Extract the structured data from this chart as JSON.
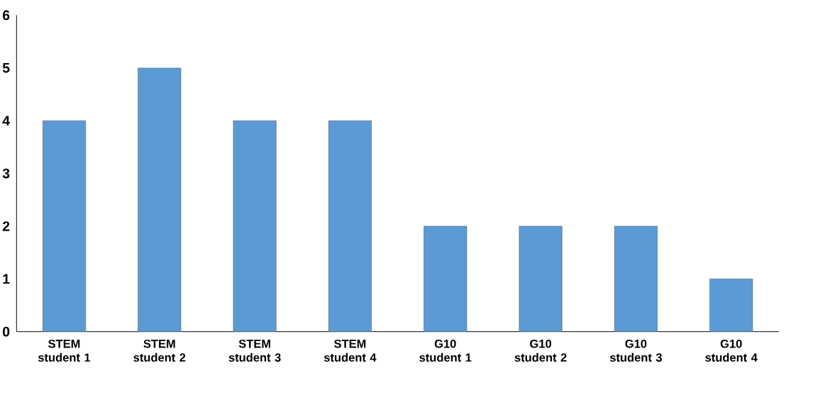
{
  "chart_data": {
    "type": "bar",
    "categories": [
      "STEM student 1",
      "STEM student 2",
      "STEM student 3",
      "STEM student 4",
      "G10 student 1",
      "G10 student 2",
      "G10 student 3",
      "G10 student 4"
    ],
    "values": [
      4,
      5,
      4,
      4,
      2,
      2,
      2,
      1
    ],
    "color": "#5b9bd5",
    "ylim": [
      0,
      6
    ],
    "yticks": [
      0,
      1,
      2,
      3,
      4,
      5,
      6
    ]
  }
}
